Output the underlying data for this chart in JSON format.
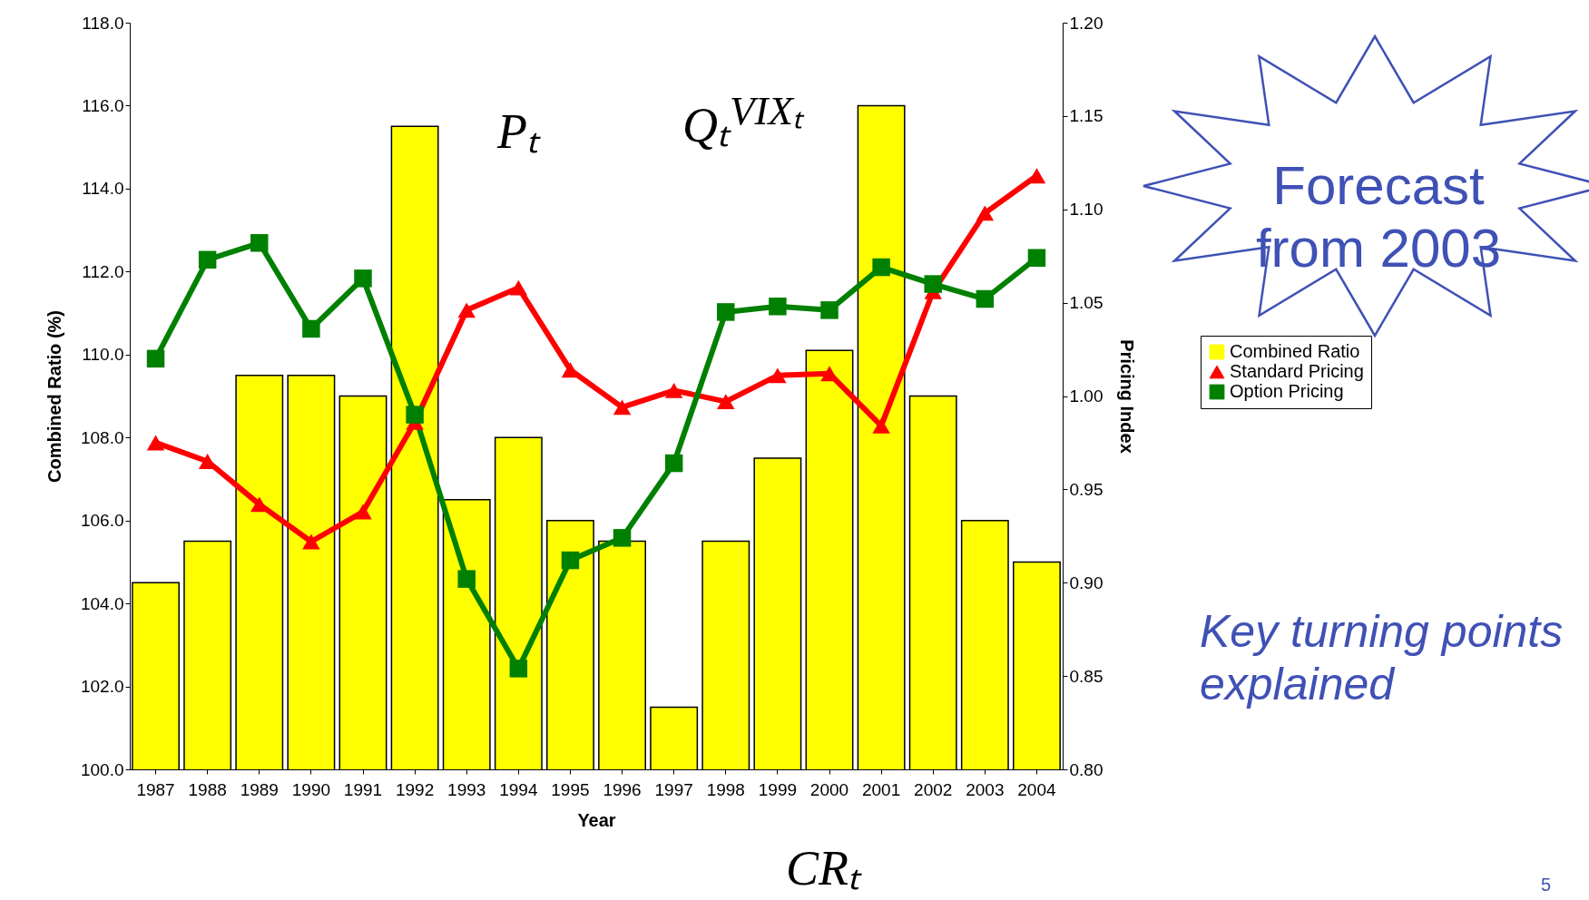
{
  "chart_data": {
    "type": "bar",
    "xlabel": "Year",
    "ylabel": "Combined Ratio (%)",
    "y2label": "Pricing Index",
    "categories": [
      "1987",
      "1988",
      "1989",
      "1990",
      "1991",
      "1992",
      "1993",
      "1994",
      "1995",
      "1996",
      "1997",
      "1998",
      "1999",
      "2000",
      "2001",
      "2002",
      "2003",
      "2004"
    ],
    "series": [
      {
        "name": "Combined Ratio",
        "color": "#ffff00",
        "values": [
          104.5,
          105.5,
          109.5,
          109.5,
          109.0,
          115.5,
          106.5,
          108.0,
          106.0,
          105.5,
          101.5,
          105.5,
          107.5,
          110.1,
          116.0,
          109.0,
          106.0,
          105.0
        ]
      },
      {
        "name": "Standard Pricing",
        "type": "line",
        "axis": "y2",
        "marker": "triangle",
        "color": "#ff0000",
        "values": [
          0.975,
          0.965,
          0.942,
          0.922,
          0.938,
          0.986,
          1.046,
          1.058,
          1.014,
          0.994,
          1.003,
          0.997,
          1.011,
          1.012,
          0.984,
          1.056,
          1.098,
          1.118
        ]
      },
      {
        "name": "Option Pricing",
        "type": "line",
        "axis": "y2",
        "marker": "square",
        "color": "#008000",
        "values": [
          1.02,
          1.073,
          1.082,
          1.036,
          1.063,
          0.99,
          0.902,
          0.854,
          0.912,
          0.924,
          0.964,
          1.045,
          1.048,
          1.046,
          1.069,
          1.06,
          1.052,
          1.074
        ]
      }
    ],
    "ylim": [
      100,
      118
    ],
    "yticks": [
      {
        "value": 100,
        "label": "100.0"
      },
      {
        "value": 102,
        "label": "102.0"
      },
      {
        "value": 104,
        "label": "104.0"
      },
      {
        "value": 106,
        "label": "106.0"
      },
      {
        "value": 108,
        "label": "108.0"
      },
      {
        "value": 110,
        "label": "110.0"
      },
      {
        "value": 112,
        "label": "112.0"
      },
      {
        "value": 114,
        "label": "114.0"
      },
      {
        "value": 116,
        "label": "116.0"
      },
      {
        "value": 118,
        "label": "118.0"
      }
    ],
    "y2lim": [
      0.8,
      1.2
    ],
    "y2ticks": [
      {
        "value": 0.8,
        "label": "0.80"
      },
      {
        "value": 0.85,
        "label": "0.85"
      },
      {
        "value": 0.9,
        "label": "0.90"
      },
      {
        "value": 0.95,
        "label": "0.95"
      },
      {
        "value": 1,
        "label": "1.00"
      },
      {
        "value": 1.05,
        "label": "1.05"
      },
      {
        "value": 1.1,
        "label": "1.10"
      },
      {
        "value": 1.15,
        "label": "1.15"
      },
      {
        "value": 1.2,
        "label": "1.20"
      }
    ],
    "grid": false,
    "legend": "right",
    "line_style": "solid",
    "annotations": [
      "Pₜ",
      "Qₜ$^{VIXₜ}$",
      "CRₜ",
      "Forecast from 2003",
      "Key turning points explained",
      "5"
    ]
  }
}
